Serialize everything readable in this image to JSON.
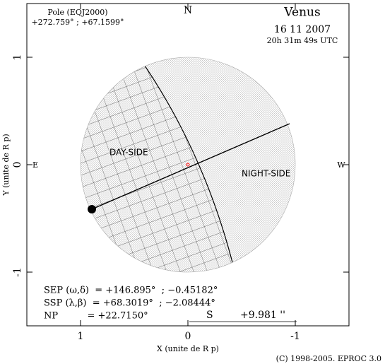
{
  "header": {
    "pole_label": "Pole (EQJ2000)",
    "pole_coords": "+272.759° ; +67.1599°",
    "planet": "Venus",
    "date": "16 11 2007",
    "time": "20h 31m 49s UTC"
  },
  "compass": {
    "north": "N",
    "east": "E",
    "west": "W",
    "south": "S"
  },
  "regions": {
    "day": "DAY-SIDE",
    "night": "NIGHT-SIDE"
  },
  "axes": {
    "x_label": "X (unite de R p)",
    "y_label": "Y (unite de R p)",
    "xlim": [
      1.5,
      -1.5
    ],
    "ylim": [
      -1.5,
      1.5
    ],
    "xticks": [
      1,
      0,
      -1
    ],
    "yticks": [
      1,
      0,
      -1
    ]
  },
  "info": [
    "SEP (ω,δ)  = +146.895°  ; −0.45182°",
    "SSP (λ,β)  = +68.3019°  ; −2.08444°",
    "NP          = +22.7150°"
  ],
  "scale_bar": "+9.981 ''",
  "copyright": "(C) 1998-2005. EPROC 3.0"
}
